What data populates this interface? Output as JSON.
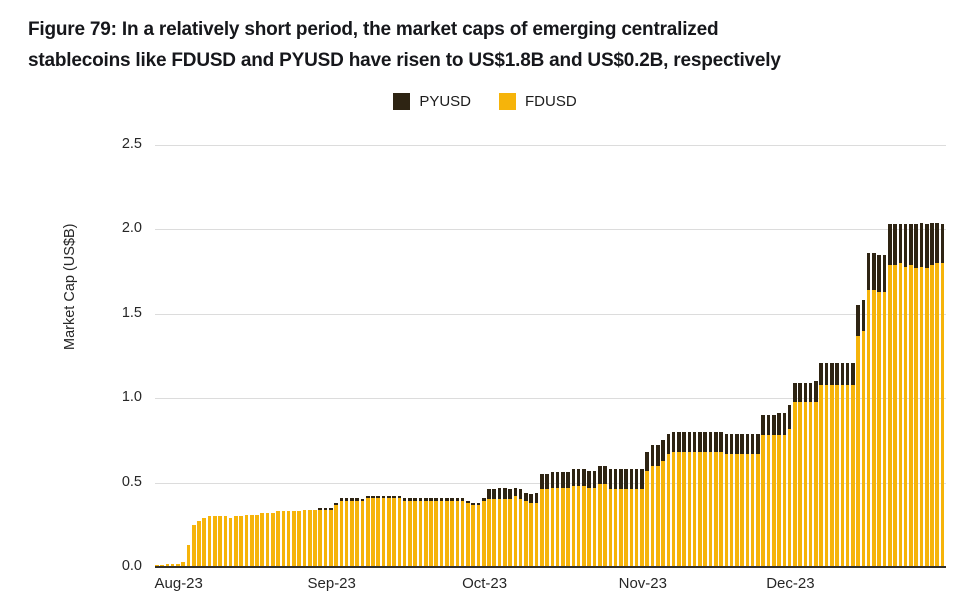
{
  "figure": {
    "title_line1": "Figure 79: In a relatively short period, the market caps of emerging centralized",
    "title_line2": "stablecoins like FDUSD and PYUSD have risen to US$1.8B and US$0.2B, respectively"
  },
  "chart_data": {
    "type": "bar",
    "stacked": true,
    "title": "Figure 79: In a relatively short period, the market caps of emerging centralized stablecoins like FDUSD and PYUSD have risen to US$1.8B and US$0.2B, respectively",
    "ylabel": "Market Cap (US$B)",
    "ylim": [
      0,
      2.5
    ],
    "ytick_labels": [
      "0.0",
      "0.5",
      "1.0",
      "1.5",
      "2.0",
      "2.5"
    ],
    "grid": "horizontal",
    "legend_position": "top-center",
    "x_unit": "day",
    "x_range_labels": [
      "Aug-23",
      "Dec-23"
    ],
    "xticks": [
      {
        "label": "Aug-23",
        "day_index": 4
      },
      {
        "label": "Sep-23",
        "day_index": 33
      },
      {
        "label": "Oct-23",
        "day_index": 62
      },
      {
        "label": "Nov-23",
        "day_index": 92
      },
      {
        "label": "Dec-23",
        "day_index": 120
      }
    ],
    "legend": [
      {
        "name": "PYUSD",
        "color": "#2E2413"
      },
      {
        "name": "FDUSD",
        "color": "#F6B40A"
      }
    ],
    "series": [
      {
        "name": "FDUSD",
        "color": "#F6B40A",
        "values": [
          0.01,
          0.01,
          0.02,
          0.02,
          0.02,
          0.03,
          0.13,
          0.25,
          0.27,
          0.29,
          0.3,
          0.3,
          0.3,
          0.3,
          0.29,
          0.3,
          0.3,
          0.31,
          0.31,
          0.31,
          0.32,
          0.32,
          0.32,
          0.33,
          0.33,
          0.33,
          0.33,
          0.33,
          0.34,
          0.34,
          0.34,
          0.34,
          0.34,
          0.34,
          0.37,
          0.39,
          0.39,
          0.39,
          0.39,
          0.39,
          0.41,
          0.41,
          0.41,
          0.41,
          0.41,
          0.41,
          0.41,
          0.39,
          0.39,
          0.39,
          0.39,
          0.39,
          0.39,
          0.39,
          0.39,
          0.39,
          0.39,
          0.39,
          0.39,
          0.38,
          0.37,
          0.37,
          0.39,
          0.4,
          0.4,
          0.4,
          0.4,
          0.4,
          0.42,
          0.4,
          0.39,
          0.38,
          0.38,
          0.46,
          0.46,
          0.47,
          0.47,
          0.47,
          0.47,
          0.48,
          0.48,
          0.48,
          0.47,
          0.47,
          0.49,
          0.49,
          0.46,
          0.46,
          0.46,
          0.46,
          0.46,
          0.46,
          0.46,
          0.57,
          0.6,
          0.6,
          0.63,
          0.67,
          0.68,
          0.68,
          0.68,
          0.68,
          0.68,
          0.68,
          0.68,
          0.68,
          0.68,
          0.68,
          0.67,
          0.67,
          0.67,
          0.67,
          0.67,
          0.67,
          0.67,
          0.78,
          0.78,
          0.78,
          0.78,
          0.78,
          0.82,
          0.98,
          0.98,
          0.98,
          0.98,
          0.98,
          1.08,
          1.08,
          1.08,
          1.08,
          1.08,
          1.08,
          1.08,
          1.37,
          1.4,
          1.64,
          1.64,
          1.63,
          1.63,
          1.79,
          1.79,
          1.8,
          1.78,
          1.79,
          1.77,
          1.78,
          1.77,
          1.79,
          1.8,
          1.8
        ]
      },
      {
        "name": "PYUSD",
        "color": "#2E2413",
        "values": [
          0,
          0,
          0,
          0,
          0,
          0,
          0,
          0,
          0,
          0,
          0,
          0,
          0,
          0,
          0,
          0,
          0,
          0,
          0,
          0,
          0,
          0,
          0,
          0,
          0,
          0,
          0,
          0,
          0,
          0,
          0,
          0.01,
          0.01,
          0.01,
          0.01,
          0.02,
          0.02,
          0.02,
          0.02,
          0.01,
          0.01,
          0.01,
          0.01,
          0.01,
          0.01,
          0.01,
          0.01,
          0.02,
          0.02,
          0.02,
          0.02,
          0.02,
          0.02,
          0.02,
          0.02,
          0.02,
          0.02,
          0.02,
          0.02,
          0.01,
          0.01,
          0.01,
          0.02,
          0.06,
          0.06,
          0.07,
          0.07,
          0.06,
          0.05,
          0.06,
          0.05,
          0.05,
          0.06,
          0.09,
          0.09,
          0.09,
          0.09,
          0.09,
          0.09,
          0.1,
          0.1,
          0.1,
          0.1,
          0.1,
          0.11,
          0.11,
          0.12,
          0.12,
          0.12,
          0.12,
          0.12,
          0.12,
          0.12,
          0.11,
          0.12,
          0.12,
          0.12,
          0.12,
          0.12,
          0.12,
          0.12,
          0.12,
          0.12,
          0.12,
          0.12,
          0.12,
          0.12,
          0.12,
          0.12,
          0.12,
          0.12,
          0.12,
          0.12,
          0.12,
          0.12,
          0.12,
          0.12,
          0.12,
          0.13,
          0.13,
          0.14,
          0.11,
          0.11,
          0.11,
          0.11,
          0.12,
          0.13,
          0.13,
          0.13,
          0.13,
          0.13,
          0.13,
          0.13,
          0.18,
          0.18,
          0.22,
          0.22,
          0.22,
          0.22,
          0.24,
          0.24,
          0.23,
          0.25,
          0.24,
          0.26,
          0.26,
          0.26,
          0.25,
          0.24,
          0.23
        ]
      }
    ]
  }
}
